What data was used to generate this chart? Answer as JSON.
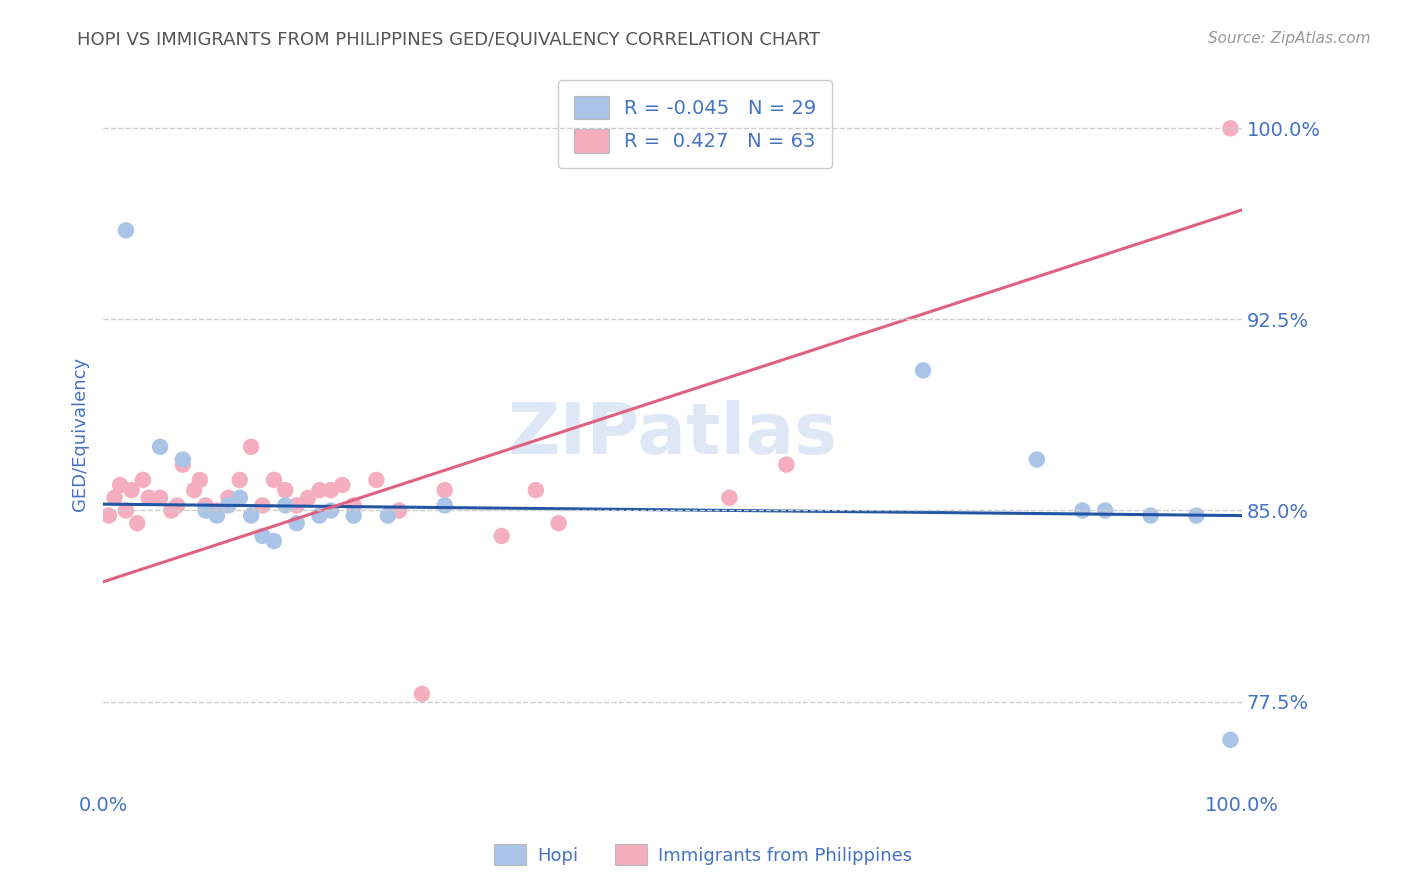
{
  "title": "HOPI VS IMMIGRANTS FROM PHILIPPINES GED/EQUIVALENCY CORRELATION CHART",
  "source": "Source: ZipAtlas.com",
  "ylabel": "GED/Equivalency",
  "xlim": [
    0.0,
    1.0
  ],
  "ylim": [
    0.74,
    1.02
  ],
  "yticks": [
    0.775,
    0.85,
    0.925,
    1.0
  ],
  "ytick_labels": [
    "77.5%",
    "85.0%",
    "92.5%",
    "100.0%"
  ],
  "xticks": [
    0.0,
    1.0
  ],
  "xtick_labels": [
    "0.0%",
    "100.0%"
  ],
  "hopi_R": "-0.045",
  "hopi_N": "29",
  "phil_R": "0.427",
  "phil_N": "63",
  "hopi_color": "#aac4e8",
  "phil_color": "#f5adc0",
  "hopi_line_color": "#2255a4",
  "phil_line_color": "#e06080",
  "background_color": "#ffffff",
  "grid_color": "#cccccc",
  "text_color": "#4472c4",
  "watermark": "ZIPatlas",
  "legend_text_color": "#4472c4",
  "hopi_x": [
    0.02,
    0.05,
    0.07,
    0.09,
    0.1,
    0.11,
    0.12,
    0.13,
    0.14,
    0.15,
    0.16,
    0.17,
    0.19,
    0.2,
    0.22,
    0.25,
    0.3,
    0.72,
    0.82,
    0.86,
    0.88,
    0.92,
    0.96,
    0.99
  ],
  "hopi_y": [
    0.96,
    0.875,
    0.87,
    0.85,
    0.848,
    0.852,
    0.855,
    0.848,
    0.84,
    0.838,
    0.852,
    0.845,
    0.848,
    0.85,
    0.848,
    0.848,
    0.852,
    0.905,
    0.87,
    0.85,
    0.85,
    0.848,
    0.848,
    0.76
  ],
  "phil_x": [
    0.005,
    0.01,
    0.015,
    0.02,
    0.025,
    0.03,
    0.035,
    0.04,
    0.05,
    0.06,
    0.065,
    0.07,
    0.08,
    0.085,
    0.09,
    0.1,
    0.11,
    0.12,
    0.13,
    0.14,
    0.15,
    0.16,
    0.17,
    0.18,
    0.19,
    0.2,
    0.21,
    0.22,
    0.24,
    0.26,
    0.28,
    0.3,
    0.35,
    0.38,
    0.4,
    0.55,
    0.6,
    0.99
  ],
  "phil_y": [
    0.848,
    0.855,
    0.86,
    0.85,
    0.858,
    0.845,
    0.862,
    0.855,
    0.855,
    0.85,
    0.852,
    0.868,
    0.858,
    0.862,
    0.852,
    0.85,
    0.855,
    0.862,
    0.875,
    0.852,
    0.862,
    0.858,
    0.852,
    0.855,
    0.858,
    0.858,
    0.86,
    0.852,
    0.862,
    0.85,
    0.778,
    0.858,
    0.84,
    0.858,
    0.845,
    0.855,
    0.868,
    1.0
  ],
  "hopi_line_start_y": 0.8525,
  "hopi_line_end_y": 0.848,
  "phil_line_start_y": 0.822,
  "phil_line_end_y": 0.968
}
